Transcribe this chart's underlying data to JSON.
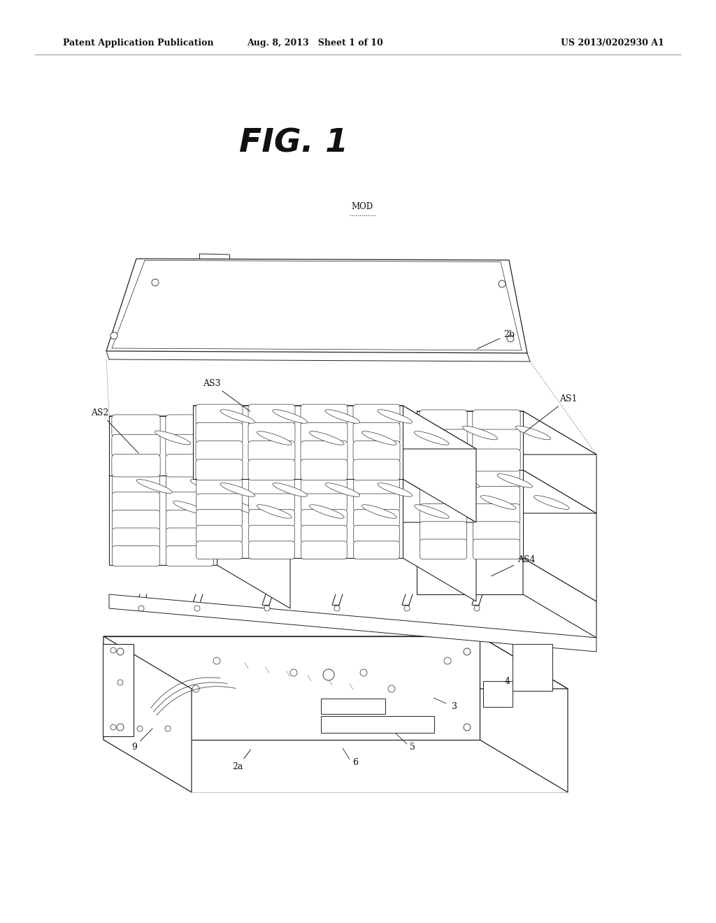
{
  "background_color": "#ffffff",
  "header_left": "Patent Application Publication",
  "header_center": "Aug. 8, 2013   Sheet 1 of 10",
  "header_right": "US 2013/0202930 A1",
  "fig_title": "FIG. 1",
  "mod_label": "MOD",
  "line_color": "#222222",
  "label_color": "#111111",
  "header_fontsize": 9,
  "fig_fontsize": 34,
  "label_fontsize": 9,
  "dpi": 100
}
